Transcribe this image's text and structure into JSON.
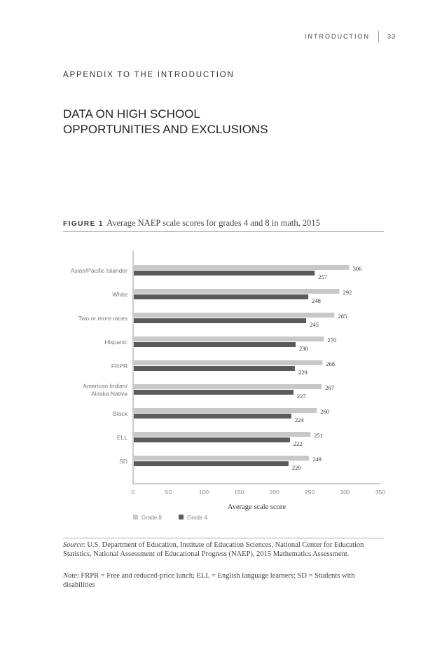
{
  "header": {
    "section": "INTRODUCTION",
    "page": "33"
  },
  "appendix_label": "APPENDIX TO THE INTRODUCTION",
  "title_line1": "DATA ON HIGH SCHOOL",
  "title_line2": "OPPORTUNITIES AND EXCLUSIONS",
  "figure": {
    "label": "FIGURE 1",
    "caption": "Average NAEP scale scores for grades 4 and 8 in math, 2015"
  },
  "chart_data": {
    "type": "bar",
    "orientation": "horizontal",
    "categories": [
      "Asian/Pacific Islander",
      "White",
      "Two or more races",
      "Hispanic",
      "FRPR",
      "American Indian/\nAlaska Native",
      "Black",
      "ELL",
      "SD"
    ],
    "series": [
      {
        "name": "Grade 8",
        "color": "#c8c8c8",
        "values": [
          306,
          292,
          285,
          270,
          268,
          267,
          260,
          251,
          249
        ]
      },
      {
        "name": "Grade 4",
        "color": "#5a5a5a",
        "values": [
          257,
          248,
          245,
          230,
          229,
          227,
          224,
          222,
          220
        ]
      }
    ],
    "xlabel": "Average scale score",
    "xlim": [
      0,
      350
    ],
    "xticks": [
      "0",
      "50",
      "100",
      "150",
      "200",
      "250",
      "300",
      "350"
    ],
    "legend": "bottom-left",
    "grid": false
  },
  "source": {
    "label": "Source",
    "text": ": U.S. Department of Education, Institute of Education Sciences, National Center for Education Statistics, National Assessment of Educational Progress (NAEP), 2015 Mathematics Assessment."
  },
  "note": {
    "label": "Note",
    "text": ": FRPR = Free and reduced-price lunch; ELL = English language learners; SD = Students with disabilities"
  }
}
